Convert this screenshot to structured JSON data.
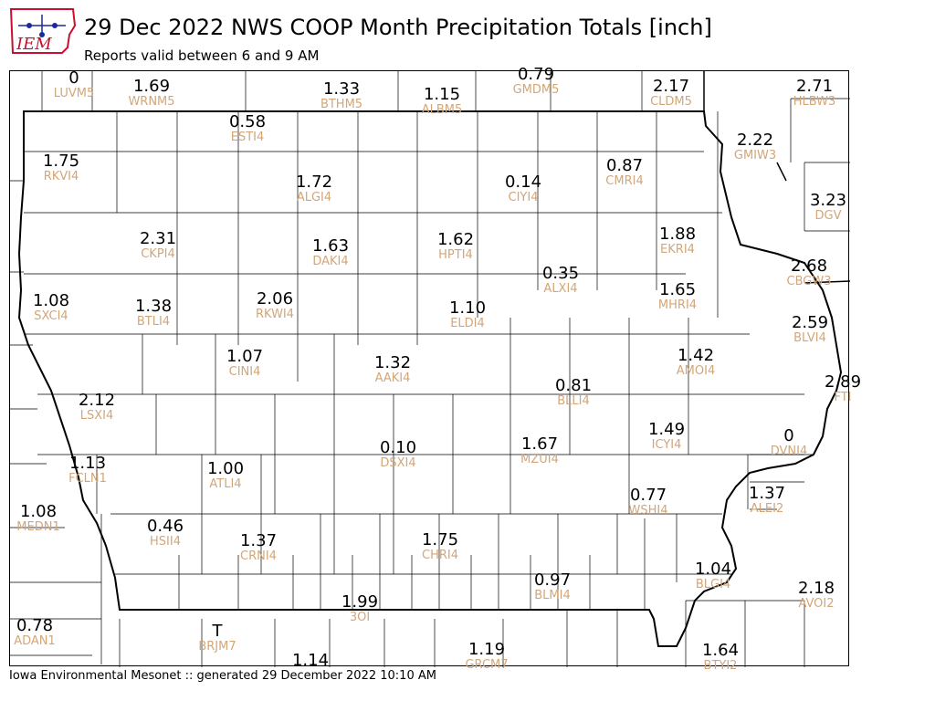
{
  "header": {
    "title": "29 Dec 2022 NWS COOP Month Precipitation Totals [inch]",
    "subtitle": "Reports valid between 6 and 9 AM",
    "logo_text": "IEM"
  },
  "footer": {
    "text": "Iowa Environmental Mesonet :: generated 29 December 2022 10:10 AM"
  },
  "colors": {
    "value_text": "#000000",
    "station_id": "#d2a679",
    "borders": "#000000",
    "logo_red": "#c8102e",
    "logo_blue": "#1a2a9c"
  },
  "stations": [
    {
      "id": "LUVM5",
      "value": "0"
    },
    {
      "id": "WRNM5",
      "value": "1.69"
    },
    {
      "id": "BTHM5",
      "value": "1.33"
    },
    {
      "id": "ALBM5",
      "value": "1.15"
    },
    {
      "id": "GMDM5",
      "value": "0.79"
    },
    {
      "id": "CLDM5",
      "value": "2.17"
    },
    {
      "id": "HLBW3",
      "value": "2.71"
    },
    {
      "id": "ESTI4",
      "value": "0.58"
    },
    {
      "id": "RKVI4",
      "value": "1.75"
    },
    {
      "id": "GMIW3",
      "value": "2.22"
    },
    {
      "id": "ALGI4",
      "value": "1.72"
    },
    {
      "id": "CIYI4",
      "value": "0.14"
    },
    {
      "id": "CMRI4",
      "value": "0.87"
    },
    {
      "id": "DGV",
      "value": "3.23"
    },
    {
      "id": "CKPI4",
      "value": "2.31"
    },
    {
      "id": "DAKI4",
      "value": "1.63"
    },
    {
      "id": "HPTI4",
      "value": "1.62"
    },
    {
      "id": "EKRI4",
      "value": "1.88"
    },
    {
      "id": "CBGW3",
      "value": "2.68"
    },
    {
      "id": "SXCI4",
      "value": "1.08"
    },
    {
      "id": "BTLI4",
      "value": "1.38"
    },
    {
      "id": "RKWI4",
      "value": "2.06"
    },
    {
      "id": "ALXI4",
      "value": "0.35"
    },
    {
      "id": "ELDI4",
      "value": "1.10"
    },
    {
      "id": "MHRI4",
      "value": "1.65"
    },
    {
      "id": "BLVI4",
      "value": "2.59"
    },
    {
      "id": "CINI4",
      "value": "1.07"
    },
    {
      "id": "AAKI4",
      "value": "1.32"
    },
    {
      "id": "AMOI4",
      "value": "1.42"
    },
    {
      "id": "FTI",
      "value": "2.89"
    },
    {
      "id": "LSXI4",
      "value": "2.12"
    },
    {
      "id": "BLLI4",
      "value": "0.81"
    },
    {
      "id": "ICYI4",
      "value": "1.49"
    },
    {
      "id": "DSXI4",
      "value": "0.10"
    },
    {
      "id": "MZUI4",
      "value": "1.67"
    },
    {
      "id": "DVNI4",
      "value": "0"
    },
    {
      "id": "FCLN1",
      "value": "1.13"
    },
    {
      "id": "ATLI4",
      "value": "1.00"
    },
    {
      "id": "WSHI4",
      "value": "0.77"
    },
    {
      "id": "ALEI2",
      "value": "1.37"
    },
    {
      "id": "MEDN1",
      "value": "1.08"
    },
    {
      "id": "HSII4",
      "value": "0.46"
    },
    {
      "id": "CRNI4",
      "value": "1.37"
    },
    {
      "id": "CHRI4",
      "value": "1.75"
    },
    {
      "id": "BLMI4",
      "value": "0.97"
    },
    {
      "id": "BLGI4",
      "value": "1.04"
    },
    {
      "id": "AVOI2",
      "value": "2.18"
    },
    {
      "id": "3OI",
      "value": "1.99"
    },
    {
      "id": "ADAN1",
      "value": "0.78"
    },
    {
      "id": "BRJM7",
      "value": "T"
    },
    {
      "id": "GRCM7",
      "value": "1.19"
    },
    {
      "id": "BTYI2",
      "value": "1.64"
    },
    {
      "id": "",
      "value": "1.14"
    }
  ]
}
